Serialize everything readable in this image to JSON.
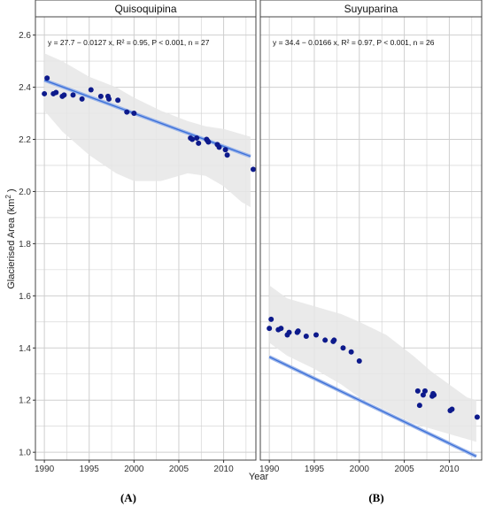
{
  "chart_data": {
    "type": "scatter",
    "ylabel_base": "Glacierised Area (km",
    "ylabel_sup": "2",
    "ylabel_end": " )",
    "xlabel": "Year",
    "ylim": [
      0.97,
      2.67
    ],
    "xlim": [
      1989.0,
      2013.6
    ],
    "yticks": [
      "1.0",
      "1.2",
      "1.4",
      "1.6",
      "1.8",
      "2.0",
      "2.2",
      "2.4",
      "2.6"
    ],
    "xticks": [
      "1990",
      "1995",
      "2000",
      "2005",
      "2010"
    ],
    "grid": true,
    "panels": [
      {
        "strip_title": "Quisoquipina",
        "panel_label": "(A)",
        "equation": "y = 27.7 − 0.0127 x, R² = 0.95, P < 0.001, n = 27",
        "fit": {
          "intercept": 27.7,
          "slope": -0.0127,
          "x_range": [
            1990,
            2013
          ]
        },
        "band_upper": [
          [
            1990,
            2.53
          ],
          [
            1992,
            2.5
          ],
          [
            1995,
            2.44
          ],
          [
            1998,
            2.4
          ],
          [
            2000,
            2.36
          ],
          [
            2003,
            2.31
          ],
          [
            2006,
            2.27
          ],
          [
            2008,
            2.25
          ],
          [
            2010,
            2.24
          ],
          [
            2012,
            2.22
          ],
          [
            2013,
            2.21
          ]
        ],
        "band_lower": [
          [
            1990,
            2.31
          ],
          [
            1992,
            2.23
          ],
          [
            1995,
            2.14
          ],
          [
            1998,
            2.07
          ],
          [
            2000,
            2.04
          ],
          [
            2003,
            2.04
          ],
          [
            2006,
            2.07
          ],
          [
            2008,
            2.06
          ],
          [
            2010,
            2.02
          ],
          [
            2012,
            1.96
          ],
          [
            2013,
            1.94
          ]
        ],
        "points": [
          [
            1990.0,
            2.375
          ],
          [
            1990.3,
            2.435
          ],
          [
            1991.0,
            2.375
          ],
          [
            1991.3,
            2.38
          ],
          [
            1992.0,
            2.365
          ],
          [
            1992.2,
            2.37
          ],
          [
            1993.2,
            2.37
          ],
          [
            1994.2,
            2.355
          ],
          [
            1995.2,
            2.39
          ],
          [
            1996.3,
            2.365
          ],
          [
            1997.1,
            2.365
          ],
          [
            1997.2,
            2.355
          ],
          [
            1998.2,
            2.35
          ],
          [
            1999.2,
            2.305
          ],
          [
            2000.0,
            2.3
          ],
          [
            2006.3,
            2.205
          ],
          [
            2006.5,
            2.2
          ],
          [
            2007.0,
            2.205
          ],
          [
            2007.2,
            2.185
          ],
          [
            2008.1,
            2.2
          ],
          [
            2008.2,
            2.195
          ],
          [
            2008.3,
            2.19
          ],
          [
            2009.3,
            2.18
          ],
          [
            2009.5,
            2.17
          ],
          [
            2010.2,
            2.16
          ],
          [
            2010.4,
            2.14
          ],
          [
            2013.3,
            2.085
          ]
        ]
      },
      {
        "strip_title": "Suyuparina",
        "panel_label": "(B)",
        "equation": "y = 34.4 − 0.0166 x, R² = 0.97, P < 0.001, n = 26",
        "fit": {
          "intercept": 34.4,
          "slope": -0.0166,
          "x_range": [
            1990,
            2013
          ]
        },
        "band_upper": [
          [
            1990,
            1.64
          ],
          [
            1992,
            1.59
          ],
          [
            1995,
            1.56
          ],
          [
            1998,
            1.53
          ],
          [
            2000,
            1.5
          ],
          [
            2003,
            1.45
          ],
          [
            2006,
            1.37
          ],
          [
            2008,
            1.31
          ],
          [
            2010,
            1.26
          ],
          [
            2012,
            1.21
          ],
          [
            2013,
            1.2
          ]
        ],
        "band_lower": [
          [
            1990,
            1.42
          ],
          [
            1992,
            1.37
          ],
          [
            1995,
            1.32
          ],
          [
            1998,
            1.26
          ],
          [
            2000,
            1.21
          ],
          [
            2003,
            1.16
          ],
          [
            2006,
            1.11
          ],
          [
            2008,
            1.09
          ],
          [
            2010,
            1.07
          ],
          [
            2012,
            1.05
          ],
          [
            2013,
            1.04
          ]
        ],
        "points": [
          [
            1990.0,
            1.475
          ],
          [
            1990.2,
            1.51
          ],
          [
            1991.0,
            1.47
          ],
          [
            1991.3,
            1.475
          ],
          [
            1992.0,
            1.45
          ],
          [
            1992.2,
            1.46
          ],
          [
            1993.1,
            1.46
          ],
          [
            1993.2,
            1.465
          ],
          [
            1994.1,
            1.445
          ],
          [
            1995.2,
            1.45
          ],
          [
            1996.2,
            1.43
          ],
          [
            1997.1,
            1.425
          ],
          [
            1997.2,
            1.43
          ],
          [
            1998.2,
            1.4
          ],
          [
            1999.1,
            1.385
          ],
          [
            2000.0,
            1.35
          ],
          [
            2006.5,
            1.235
          ],
          [
            2006.7,
            1.18
          ],
          [
            2007.1,
            1.22
          ],
          [
            2007.3,
            1.235
          ],
          [
            2008.1,
            1.215
          ],
          [
            2008.2,
            1.225
          ],
          [
            2008.3,
            1.22
          ],
          [
            2010.1,
            1.16
          ],
          [
            2010.3,
            1.165
          ],
          [
            2013.1,
            1.135
          ]
        ]
      }
    ]
  },
  "colors": {
    "point": "#0d1a8c",
    "line": "#3a6fd8",
    "band": "#e6e6e6",
    "grid": "#cfcfcf",
    "frame": "#444444",
    "strip_bg": "#ffffff"
  }
}
